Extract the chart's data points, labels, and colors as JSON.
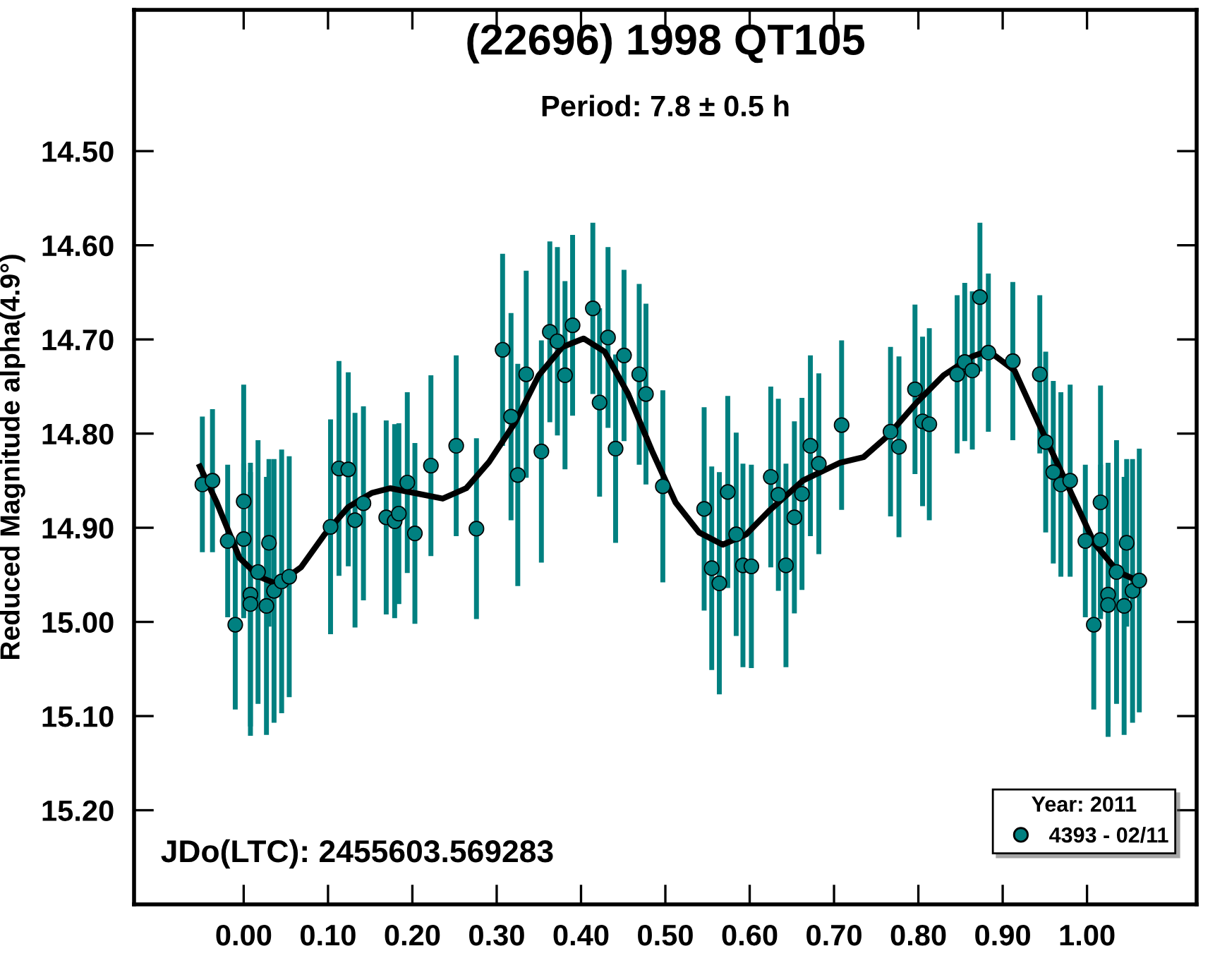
{
  "chart_data": {
    "type": "scatter",
    "title": "(22696) 1998 QT105",
    "subtitle": "Period: 7.8 ± 0.5 h",
    "ylabel": "Reduced Magnitude alpha(4.9°)",
    "legend_title": "Year: 2011",
    "legend": "bottom right",
    "grid": false,
    "annotations": [
      "JDo(LTC): 2455603.569283"
    ],
    "xlim": [
      -0.13,
      1.13
    ],
    "ylim": [
      15.3,
      14.35
    ],
    "xticks": [
      {
        "value": 0.0,
        "label": "0.00"
      },
      {
        "value": 0.1,
        "label": "0.10"
      },
      {
        "value": 0.2,
        "label": "0.20"
      },
      {
        "value": 0.3,
        "label": "0.30"
      },
      {
        "value": 0.4,
        "label": "0.40"
      },
      {
        "value": 0.5,
        "label": "0.50"
      },
      {
        "value": 0.6,
        "label": "0.60"
      },
      {
        "value": 0.7,
        "label": "0.70"
      },
      {
        "value": 0.8,
        "label": "0.80"
      },
      {
        "value": 0.9,
        "label": "0.90"
      },
      {
        "value": 1.0,
        "label": "1.00"
      }
    ],
    "yticks": [
      {
        "value": 14.5,
        "label": "14.50"
      },
      {
        "value": 14.6,
        "label": "14.60"
      },
      {
        "value": 14.7,
        "label": "14.70"
      },
      {
        "value": 14.8,
        "label": "14.80"
      },
      {
        "value": 14.9,
        "label": "14.90"
      },
      {
        "value": 15.0,
        "label": "15.00"
      },
      {
        "value": 15.1,
        "label": "15.10"
      },
      {
        "value": 15.2,
        "label": "15.20"
      }
    ],
    "series": [
      {
        "name": "4393 - 02/11",
        "color": "#008080",
        "marker": "circle",
        "x": [
          -0.049,
          -0.037,
          -0.019,
          0.0,
          0.0,
          -0.01,
          0.017,
          0.008,
          0.008,
          0.027,
          0.03,
          0.036,
          0.045,
          0.054,
          0.103,
          0.113,
          0.124,
          0.132,
          0.142,
          0.169,
          0.179,
          0.184,
          0.194,
          0.203,
          0.222,
          0.252,
          0.276,
          0.307,
          0.317,
          0.325,
          0.335,
          0.353,
          0.363,
          0.372,
          0.381,
          0.39,
          0.414,
          0.422,
          0.432,
          0.441,
          0.451,
          0.469,
          0.477,
          0.497,
          0.546,
          0.555,
          0.564,
          0.574,
          0.584,
          0.592,
          0.602,
          0.625,
          0.634,
          0.643,
          0.653,
          0.662,
          0.672,
          0.682,
          0.709,
          0.767,
          0.777,
          0.796,
          0.805,
          0.813,
          0.846,
          0.855,
          0.864,
          0.873,
          0.883,
          0.912,
          0.944,
          0.951,
          0.96,
          0.969,
          0.98,
          0.998,
          1.008,
          1.016,
          1.016,
          1.025,
          1.025,
          1.035,
          1.044,
          1.047,
          1.054,
          1.062
        ],
        "values": [
          14.854,
          14.85,
          14.914,
          14.872,
          14.912,
          15.003,
          14.947,
          14.971,
          14.981,
          14.983,
          14.916,
          14.967,
          14.957,
          14.952,
          14.899,
          14.837,
          14.838,
          14.892,
          14.874,
          14.889,
          14.893,
          14.885,
          14.852,
          14.906,
          14.834,
          14.813,
          14.901,
          14.711,
          14.782,
          14.844,
          14.737,
          14.819,
          14.692,
          14.702,
          14.738,
          14.685,
          14.667,
          14.767,
          14.698,
          14.816,
          14.717,
          14.737,
          14.758,
          14.856,
          14.88,
          14.943,
          14.959,
          14.862,
          14.907,
          14.94,
          14.941,
          14.846,
          14.865,
          14.94,
          14.889,
          14.864,
          14.813,
          14.832,
          14.791,
          14.798,
          14.814,
          14.753,
          14.787,
          14.79,
          14.737,
          14.724,
          14.733,
          14.655,
          14.714,
          14.723,
          14.737,
          14.809,
          14.841,
          14.854,
          14.85,
          14.914,
          15.003,
          14.873,
          14.913,
          14.971,
          14.982,
          14.947,
          14.983,
          14.916,
          14.967,
          14.956
        ],
        "errors": [
          0.072,
          0.076,
          0.081,
          0.124,
          0.08,
          0.09,
          0.14,
          0.14,
          0.14,
          0.137,
          0.089,
          0.14,
          0.14,
          0.128,
          0.114,
          0.114,
          0.103,
          0.114,
          0.103,
          0.103,
          0.103,
          0.096,
          0.096,
          0.096,
          0.096,
          0.096,
          0.096,
          0.102,
          0.11,
          0.118,
          0.11,
          0.118,
          0.096,
          0.1,
          0.1,
          0.096,
          0.091,
          0.1,
          0.096,
          0.1,
          0.091,
          0.096,
          0.096,
          0.102,
          0.108,
          0.108,
          0.118,
          0.102,
          0.108,
          0.108,
          0.108,
          0.096,
          0.102,
          0.108,
          0.102,
          0.102,
          0.096,
          0.096,
          0.09,
          0.09,
          0.096,
          0.09,
          0.09,
          0.102,
          0.084,
          0.084,
          0.084,
          0.079,
          0.084,
          0.084,
          0.084,
          0.096,
          0.097,
          0.098,
          0.102,
          0.081,
          0.09,
          0.124,
          0.08,
          0.14,
          0.14,
          0.14,
          0.137,
          0.089,
          0.14,
          0.14
        ]
      },
      {
        "type": "line",
        "color": "#000000",
        "marker": "none",
        "line_style": "solid",
        "x": [
          -0.052,
          -0.032,
          -0.005,
          0.018,
          0.04,
          0.068,
          0.096,
          0.124,
          0.152,
          0.174,
          0.208,
          0.236,
          0.264,
          0.291,
          0.322,
          0.35,
          0.378,
          0.403,
          0.428,
          0.456,
          0.484,
          0.512,
          0.54,
          0.568,
          0.596,
          0.623,
          0.663,
          0.707,
          0.735,
          0.763,
          0.797,
          0.83,
          0.864,
          0.883,
          0.914,
          0.942,
          0.976,
          1.009,
          1.037,
          1.062
        ],
        "values": [
          14.835,
          14.873,
          14.932,
          14.952,
          14.96,
          14.942,
          14.907,
          14.878,
          14.863,
          14.858,
          14.864,
          14.869,
          14.858,
          14.83,
          14.788,
          14.738,
          14.708,
          14.699,
          14.713,
          14.758,
          14.818,
          14.873,
          14.905,
          14.918,
          14.907,
          14.882,
          14.85,
          14.831,
          14.825,
          14.803,
          14.768,
          14.738,
          14.718,
          14.712,
          14.733,
          14.788,
          14.853,
          14.917,
          14.947,
          14.957
        ]
      }
    ]
  }
}
